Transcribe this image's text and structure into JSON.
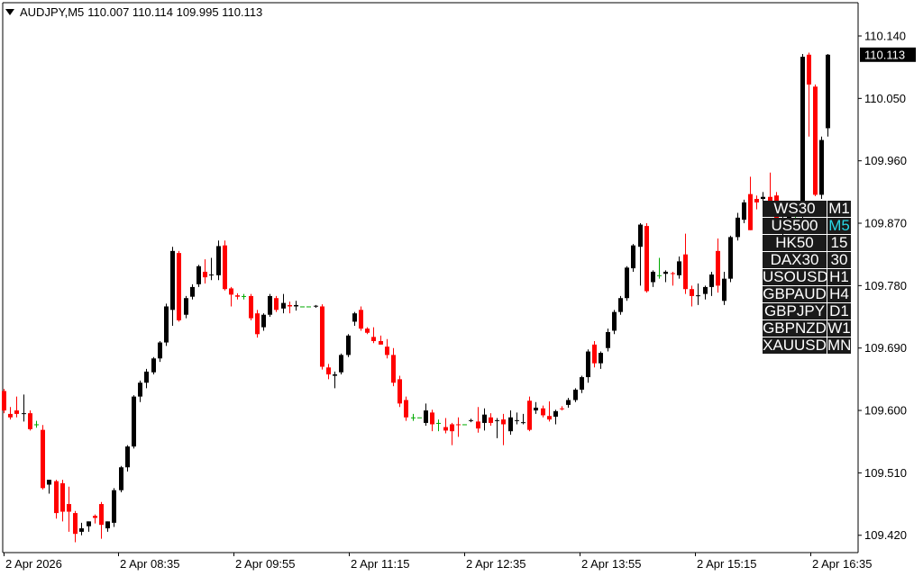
{
  "header": {
    "symbol_tf": "AUDJPY,M5",
    "ohlc": "110.007 110.114 109.995 110.113"
  },
  "price_tag": "110.113",
  "colors": {
    "bull": "#000000",
    "bear": "#ff0000",
    "doji": "#00aa00",
    "tag_bg": "#000000",
    "active_tf": "#28d7e6"
  },
  "panel": {
    "symbols": [
      "WS30",
      "US500",
      "HK50",
      "DAX30",
      "USOUSD",
      "GBPAUD",
      "GBPJPY",
      "GBPNZD",
      "XAUUSD"
    ],
    "timeframes": [
      "M1",
      "M5",
      "15",
      "30",
      "H1",
      "H4",
      "D1",
      "W1",
      "MN"
    ],
    "active_timeframe": "M5"
  },
  "chart_data": {
    "type": "candlestick",
    "title": "AUDJPY,M5",
    "y_ticks": [
      "110.140",
      "110.050",
      "109.960",
      "109.870",
      "109.780",
      "109.690",
      "109.600",
      "109.510",
      "109.420"
    ],
    "x_ticks": [
      "2 Apr 2026",
      "2 Apr 08:35",
      "2 Apr 09:55",
      "2 Apr 11:15",
      "2 Apr 12:35",
      "2 Apr 13:55",
      "2 Apr 15:15",
      "2 Apr 16:35"
    ],
    "ylim": [
      109.395,
      110.188
    ],
    "grid": false,
    "candles": [
      [
        109.628,
        109.631,
        109.596,
        109.6
      ],
      [
        109.595,
        109.605,
        109.587,
        109.59
      ],
      [
        109.6,
        109.62,
        109.59,
        109.595
      ],
      [
        109.595,
        109.623,
        109.584,
        109.596
      ],
      [
        109.596,
        109.6,
        109.571,
        109.573
      ],
      [
        109.58,
        109.585,
        109.575,
        109.58
      ],
      [
        109.572,
        109.579,
        109.486,
        109.488
      ],
      [
        109.493,
        109.5,
        109.48,
        109.5
      ],
      [
        109.498,
        109.5,
        109.444,
        109.452
      ],
      [
        109.495,
        109.5,
        109.44,
        109.454
      ],
      [
        109.465,
        109.49,
        109.425,
        109.454
      ],
      [
        109.452,
        109.455,
        109.41,
        109.422
      ],
      [
        109.425,
        109.438,
        109.42,
        109.43
      ],
      [
        109.433,
        109.44,
        109.425,
        109.44
      ],
      [
        109.448,
        109.45,
        109.437,
        109.445
      ],
      [
        109.465,
        109.468,
        109.415,
        109.435
      ],
      [
        109.43,
        109.44,
        109.425,
        109.44
      ],
      [
        109.438,
        109.488,
        109.432,
        109.485
      ],
      [
        109.485,
        109.52,
        109.482,
        109.518
      ],
      [
        109.518,
        109.55,
        109.512,
        109.548
      ],
      [
        109.548,
        109.622,
        109.545,
        109.62
      ],
      [
        109.62,
        109.643,
        109.612,
        109.64
      ],
      [
        109.64,
        109.66,
        109.632,
        109.656
      ],
      [
        109.655,
        109.677,
        109.652,
        109.675
      ],
      [
        109.675,
        109.7,
        109.67,
        109.698
      ],
      [
        109.698,
        109.754,
        109.693,
        109.75
      ],
      [
        109.745,
        109.836,
        109.722,
        109.83
      ],
      [
        109.827,
        109.83,
        109.728,
        109.73
      ],
      [
        109.738,
        109.765,
        109.733,
        109.762
      ],
      [
        109.764,
        109.782,
        109.76,
        109.778
      ],
      [
        109.782,
        109.81,
        109.778,
        109.808
      ],
      [
        109.8,
        109.818,
        109.783,
        109.792
      ],
      [
        109.795,
        109.82,
        109.788,
        109.796
      ],
      [
        109.795,
        109.845,
        109.788,
        109.837
      ],
      [
        109.838,
        109.845,
        109.773,
        109.775
      ],
      [
        109.776,
        109.778,
        109.75,
        109.767
      ],
      [
        109.766,
        109.769,
        109.76,
        109.764
      ],
      [
        109.765,
        109.768,
        109.76,
        109.765
      ],
      [
        109.765,
        109.768,
        109.73,
        109.733
      ],
      [
        109.74,
        109.745,
        109.705,
        109.71
      ],
      [
        109.72,
        109.74,
        109.715,
        109.738
      ],
      [
        109.738,
        109.768,
        109.735,
        109.765
      ],
      [
        109.762,
        109.765,
        109.742,
        109.745
      ],
      [
        109.747,
        109.768,
        109.74,
        109.755
      ],
      [
        109.752,
        109.757,
        109.74,
        109.75
      ],
      [
        109.75,
        109.758,
        109.744,
        109.752
      ],
      [
        109.75,
        109.75,
        109.75,
        109.75
      ],
      [
        109.75,
        109.75,
        109.75,
        109.75
      ],
      [
        109.75,
        109.752,
        109.748,
        109.751
      ],
      [
        109.75,
        109.753,
        109.659,
        109.663
      ],
      [
        109.662,
        109.667,
        109.645,
        109.652
      ],
      [
        109.65,
        109.656,
        109.632,
        109.652
      ],
      [
        109.655,
        109.682,
        109.652,
        109.68
      ],
      [
        109.68,
        109.71,
        109.677,
        109.708
      ],
      [
        109.728,
        109.742,
        109.722,
        109.74
      ],
      [
        109.745,
        109.75,
        109.715,
        109.718
      ],
      [
        109.718,
        109.72,
        109.71,
        109.712
      ],
      [
        109.706,
        109.72,
        109.697,
        109.7
      ],
      [
        109.7,
        109.708,
        109.695,
        109.695
      ],
      [
        109.692,
        109.703,
        109.675,
        109.68
      ],
      [
        109.68,
        109.69,
        109.635,
        109.64
      ],
      [
        109.645,
        109.65,
        109.605,
        109.61
      ],
      [
        109.615,
        109.62,
        109.585,
        109.59
      ],
      [
        109.59,
        109.595,
        109.585,
        109.59
      ],
      [
        109.59,
        109.59,
        109.59,
        109.59
      ],
      [
        109.582,
        109.61,
        109.578,
        109.6
      ],
      [
        109.597,
        109.601,
        109.57,
        109.58
      ],
      [
        109.582,
        109.587,
        109.57,
        109.582
      ],
      [
        109.576,
        109.589,
        109.567,
        109.571
      ],
      [
        109.58,
        109.582,
        109.55,
        109.57
      ],
      [
        109.58,
        109.59,
        109.562,
        109.579
      ],
      [
        109.58,
        109.58,
        109.58,
        109.58
      ],
      [
        109.585,
        109.588,
        109.583,
        109.586
      ],
      [
        109.584,
        109.605,
        109.568,
        109.574
      ],
      [
        109.582,
        109.603,
        109.571,
        109.594
      ],
      [
        109.59,
        109.596,
        109.578,
        109.582
      ],
      [
        109.585,
        109.589,
        109.56,
        109.586
      ],
      [
        109.587,
        109.595,
        109.55,
        109.58
      ],
      [
        109.57,
        109.6,
        109.565,
        109.59
      ],
      [
        109.585,
        109.597,
        109.58,
        109.586
      ],
      [
        109.582,
        109.595,
        109.58,
        109.583
      ],
      [
        109.614,
        109.62,
        109.57,
        109.572
      ],
      [
        109.6,
        109.612,
        109.595,
        109.604
      ],
      [
        109.603,
        109.607,
        109.59,
        109.593
      ],
      [
        109.592,
        109.613,
        109.584,
        109.587
      ],
      [
        109.591,
        109.601,
        109.58,
        109.599
      ],
      [
        109.603,
        109.606,
        109.6,
        109.602
      ],
      [
        109.608,
        109.618,
        109.604,
        109.615
      ],
      [
        109.615,
        109.632,
        109.612,
        109.63
      ],
      [
        109.63,
        109.65,
        109.625,
        109.648
      ],
      [
        109.648,
        109.688,
        109.64,
        109.685
      ],
      [
        109.695,
        109.7,
        109.662,
        109.668
      ],
      [
        109.668,
        109.685,
        109.66,
        109.683
      ],
      [
        109.69,
        109.718,
        109.685,
        109.713
      ],
      [
        109.715,
        109.745,
        109.71,
        109.742
      ],
      [
        109.742,
        109.765,
        109.738,
        109.762
      ],
      [
        109.762,
        109.808,
        109.758,
        109.806
      ],
      [
        109.805,
        109.84,
        109.8,
        109.838
      ],
      [
        109.836,
        109.87,
        109.78,
        109.868
      ],
      [
        109.866,
        109.87,
        109.77,
        109.772
      ],
      [
        109.785,
        109.802,
        109.778,
        109.8
      ],
      [
        109.795,
        109.82,
        109.79,
        109.795
      ],
      [
        109.797,
        109.802,
        109.785,
        109.8
      ],
      [
        109.798,
        109.8,
        109.78,
        109.797
      ],
      [
        109.795,
        109.822,
        109.79,
        109.815
      ],
      [
        109.825,
        109.855,
        109.768,
        109.775
      ],
      [
        109.775,
        109.78,
        109.75,
        109.765
      ],
      [
        109.765,
        109.783,
        109.752,
        109.766
      ],
      [
        109.768,
        109.78,
        109.76,
        109.778
      ],
      [
        109.778,
        109.8,
        109.765,
        109.796
      ],
      [
        109.83,
        109.848,
        109.77,
        109.78
      ],
      [
        109.758,
        109.8,
        109.752,
        109.79
      ],
      [
        109.79,
        109.852,
        109.785,
        109.85
      ],
      [
        109.85,
        109.885,
        109.845,
        109.878
      ],
      [
        109.875,
        109.904,
        109.87,
        109.9
      ],
      [
        109.912,
        109.937,
        109.86,
        109.86
      ],
      [
        109.905,
        109.91,
        109.89,
        109.9
      ],
      [
        109.905,
        109.915,
        109.88,
        109.908
      ],
      [
        109.908,
        109.943,
        109.885,
        109.895
      ],
      [
        109.91,
        109.915,
        109.855,
        109.86
      ],
      [
        109.86,
        109.88,
        109.85,
        109.87
      ],
      [
        109.875,
        109.895,
        109.87,
        109.89
      ],
      [
        109.87,
        109.88,
        109.864,
        109.87
      ],
      [
        109.88,
        110.114,
        109.87,
        110.11
      ],
      [
        110.113,
        110.116,
        109.995,
        110.07
      ],
      [
        110.067,
        110.07,
        109.909,
        109.911
      ],
      [
        109.911,
        109.995,
        109.905,
        109.99
      ],
      [
        110.007,
        110.114,
        109.995,
        110.113
      ]
    ]
  }
}
